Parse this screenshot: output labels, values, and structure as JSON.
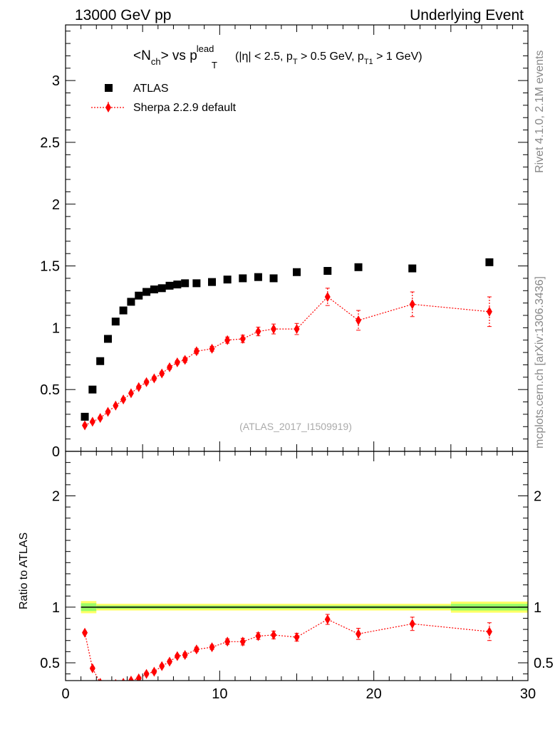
{
  "header": {
    "left": "13000 GeV pp",
    "right": "Underlying Event"
  },
  "side_labels": {
    "rivet": "Rivet 4.1.0,  2.1M events",
    "mcplots": "mcplots.cern.ch [arXiv:1306.3436]"
  },
  "colors": {
    "data": "#000000",
    "mc": "#ff0000",
    "band_inner": "#99ff66",
    "band_outer": "#ffff66"
  },
  "chart_data": [
    {
      "type": "scatter",
      "panel": "main",
      "title": {
        "main": "<N",
        "sub1": "ch",
        "mid": "> vs p",
        "sup": "lead",
        "sub2": "T",
        "cond_a": "(|η| < 2.5, p",
        "cond_b": "T",
        "cond_c": " > 0.5 GeV, p",
        "cond_d": "T1",
        "cond_e": " > 1 GeV)"
      },
      "watermark": "(ATLAS_2017_I1509919)",
      "xlim": [
        0,
        30
      ],
      "ylim": [
        0,
        3.45
      ],
      "y_ticks": [
        {
          "v": 0,
          "label": "0"
        },
        {
          "v": 0.5,
          "label": "0.5"
        },
        {
          "v": 1,
          "label": "1"
        },
        {
          "v": 1.5,
          "label": "1.5"
        },
        {
          "v": 2,
          "label": "2"
        },
        {
          "v": 2.5,
          "label": "2.5"
        },
        {
          "v": 3,
          "label": "3"
        }
      ],
      "legend": [
        {
          "name": "ATLAS",
          "marker": "square"
        },
        {
          "name": "Sherpa 2.2.9 default",
          "marker": "diamond"
        }
      ],
      "series": [
        {
          "name": "ATLAS",
          "x": [
            1.25,
            1.75,
            2.25,
            2.75,
            3.25,
            3.75,
            4.25,
            4.75,
            5.25,
            5.75,
            6.25,
            6.75,
            7.25,
            7.75,
            8.5,
            9.5,
            10.5,
            11.5,
            12.5,
            13.5,
            15.0,
            17.0,
            19.0,
            22.5,
            27.5
          ],
          "y": [
            0.28,
            0.5,
            0.73,
            0.91,
            1.05,
            1.14,
            1.21,
            1.26,
            1.29,
            1.31,
            1.32,
            1.34,
            1.35,
            1.36,
            1.36,
            1.37,
            1.39,
            1.4,
            1.41,
            1.4,
            1.45,
            1.46,
            1.49,
            1.48,
            1.53
          ]
        },
        {
          "name": "Sherpa 2.2.9 default",
          "x": [
            1.25,
            1.75,
            2.25,
            2.75,
            3.25,
            3.75,
            4.25,
            4.75,
            5.25,
            5.75,
            6.25,
            6.75,
            7.25,
            7.75,
            8.5,
            9.5,
            10.5,
            11.5,
            12.5,
            13.5,
            15.0,
            17.0,
            19.0,
            22.5,
            27.5
          ],
          "y": [
            0.21,
            0.24,
            0.27,
            0.32,
            0.37,
            0.42,
            0.47,
            0.52,
            0.56,
            0.59,
            0.63,
            0.68,
            0.72,
            0.74,
            0.81,
            0.83,
            0.9,
            0.91,
            0.97,
            0.99,
            0.99,
            1.25,
            1.06,
            1.19,
            1.13
          ],
          "err": [
            0.01,
            0.01,
            0.01,
            0.01,
            0.01,
            0.01,
            0.01,
            0.01,
            0.015,
            0.015,
            0.015,
            0.015,
            0.015,
            0.02,
            0.02,
            0.02,
            0.025,
            0.03,
            0.035,
            0.04,
            0.045,
            0.07,
            0.08,
            0.1,
            0.12
          ]
        }
      ]
    },
    {
      "type": "line",
      "panel": "ratio",
      "ylabel": "Ratio to ATLAS",
      "xlim": [
        0,
        30
      ],
      "ylim": [
        0.34,
        2.4
      ],
      "x_ticks": [
        {
          "v": 0,
          "label": "0"
        },
        {
          "v": 10,
          "label": "10"
        },
        {
          "v": 20,
          "label": "20"
        },
        {
          "v": 30,
          "label": "30"
        }
      ],
      "y_ticks": [
        {
          "v": 0.5,
          "label": "0.5"
        },
        {
          "v": 1,
          "label": "1"
        },
        {
          "v": 2,
          "label": "2"
        }
      ],
      "reference": 1.0,
      "band": [
        {
          "x0": 1.0,
          "x1": 2.0,
          "inner": 0.035,
          "outer": 0.055
        },
        {
          "x0": 2.0,
          "x1": 25.0,
          "inner": 0.015,
          "outer": 0.03
        },
        {
          "x0": 25.0,
          "x1": 30.0,
          "inner": 0.03,
          "outer": 0.05
        }
      ],
      "series": [
        {
          "name": "Sherpa 2.2.9 default",
          "x": [
            1.25,
            1.75,
            2.25,
            2.75,
            3.25,
            3.75,
            4.25,
            4.75,
            5.25,
            5.75,
            6.25,
            6.75,
            7.25,
            7.75,
            8.5,
            9.5,
            10.5,
            11.5,
            12.5,
            13.5,
            15.0,
            17.0,
            19.0,
            22.5,
            27.5
          ],
          "y": [
            0.77,
            0.45,
            0.32,
            0.3,
            0.31,
            0.32,
            0.34,
            0.36,
            0.4,
            0.42,
            0.47,
            0.51,
            0.56,
            0.57,
            0.62,
            0.64,
            0.69,
            0.69,
            0.74,
            0.75,
            0.73,
            0.89,
            0.76,
            0.85,
            0.78
          ],
          "err": [
            0.012,
            0.012,
            0.012,
            0.012,
            0.012,
            0.012,
            0.012,
            0.012,
            0.015,
            0.015,
            0.015,
            0.015,
            0.015,
            0.02,
            0.02,
            0.02,
            0.025,
            0.03,
            0.03,
            0.035,
            0.035,
            0.045,
            0.05,
            0.06,
            0.08
          ]
        }
      ]
    }
  ]
}
